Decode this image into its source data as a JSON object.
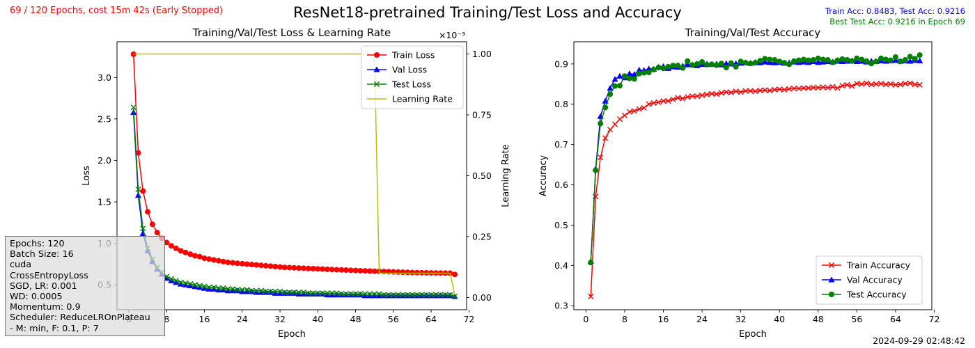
{
  "figure": {
    "suptitle": "ResNet18-pretrained Training/Test Loss and Accuracy",
    "status": "69 / 120 Epochs, cost 15m 42s (Early Stopped)",
    "acc_summary": "Train Acc: 0.8483, Test Acc: 0.9216",
    "best_acc": "Best Test Acc: 0.9216 in Epoch 69",
    "timestamp": "2024-09-29 02:48:42",
    "info_lines": [
      "Epochs: 120",
      "Batch Size: 16",
      "cuda",
      "CrossEntropyLoss",
      "SGD, LR: 0.001",
      "WD: 0.0005",
      "Momentum: 0.9",
      "Scheduler: ReduceLROnPlateau",
      "- M: min, F: 0.1, P: 7"
    ],
    "colors": {
      "train": "#ff0000",
      "val": "#0000ff",
      "test": "#008000",
      "lr": "#bfbf00",
      "status": "#ff0000"
    }
  },
  "chart_data": [
    {
      "type": "line",
      "title": "Training/Val/Test Loss & Learning Rate",
      "xlabel": "Epoch",
      "ylabel": "Loss",
      "y2label": "Learning Rate",
      "y2_offset_text": "×10⁻³",
      "xlim": [
        -2.5,
        71.5
      ],
      "ylim": [
        0.2,
        3.43
      ],
      "y2lim": [
        -0.05,
        1.05
      ],
      "xticks": [
        0,
        8,
        16,
        24,
        32,
        40,
        48,
        56,
        64,
        72
      ],
      "yticks": [
        0.5,
        1.0,
        1.5,
        2.0,
        2.5,
        3.0
      ],
      "y2ticks": [
        0.0,
        0.25,
        0.5,
        0.75,
        1.0
      ],
      "legend_position": "top-right",
      "x": [
        1,
        2,
        3,
        4,
        5,
        6,
        7,
        8,
        9,
        10,
        11,
        12,
        13,
        14,
        15,
        16,
        17,
        18,
        19,
        20,
        21,
        22,
        23,
        24,
        25,
        26,
        27,
        28,
        29,
        30,
        31,
        32,
        33,
        34,
        35,
        36,
        37,
        38,
        39,
        40,
        41,
        42,
        43,
        44,
        45,
        46,
        47,
        48,
        49,
        50,
        51,
        52,
        53,
        54,
        55,
        56,
        57,
        58,
        59,
        60,
        61,
        62,
        63,
        64,
        65,
        66,
        67,
        68,
        69
      ],
      "series": [
        {
          "name": "Train Loss",
          "marker": "circle",
          "color": "#ff0000",
          "values": [
            3.28,
            2.09,
            1.63,
            1.38,
            1.23,
            1.13,
            1.06,
            1.01,
            0.97,
            0.94,
            0.91,
            0.89,
            0.87,
            0.85,
            0.84,
            0.82,
            0.81,
            0.8,
            0.79,
            0.78,
            0.77,
            0.765,
            0.76,
            0.755,
            0.75,
            0.745,
            0.74,
            0.735,
            0.73,
            0.725,
            0.72,
            0.715,
            0.71,
            0.708,
            0.705,
            0.702,
            0.7,
            0.697,
            0.695,
            0.692,
            0.69,
            0.687,
            0.685,
            0.682,
            0.68,
            0.678,
            0.675,
            0.673,
            0.67,
            0.668,
            0.666,
            0.664,
            0.662,
            0.66,
            0.658,
            0.656,
            0.654,
            0.652,
            0.65,
            0.648,
            0.647,
            0.646,
            0.645,
            0.644,
            0.643,
            0.642,
            0.641,
            0.64,
            0.625
          ]
        },
        {
          "name": "Val Loss",
          "marker": "triangle",
          "color": "#0000ff",
          "values": [
            2.58,
            1.58,
            1.12,
            0.91,
            0.78,
            0.69,
            0.63,
            0.58,
            0.55,
            0.53,
            0.51,
            0.5,
            0.49,
            0.48,
            0.47,
            0.46,
            0.45,
            0.45,
            0.44,
            0.44,
            0.43,
            0.43,
            0.43,
            0.42,
            0.42,
            0.42,
            0.41,
            0.41,
            0.41,
            0.41,
            0.4,
            0.4,
            0.4,
            0.4,
            0.4,
            0.39,
            0.39,
            0.39,
            0.39,
            0.39,
            0.39,
            0.38,
            0.38,
            0.38,
            0.38,
            0.38,
            0.38,
            0.38,
            0.38,
            0.37,
            0.37,
            0.37,
            0.37,
            0.37,
            0.37,
            0.37,
            0.37,
            0.37,
            0.37,
            0.37,
            0.37,
            0.37,
            0.37,
            0.37,
            0.37,
            0.37,
            0.37,
            0.37,
            0.36
          ]
        },
        {
          "name": "Test Loss",
          "marker": "x",
          "color": "#008000",
          "values": [
            2.64,
            1.65,
            1.18,
            0.94,
            0.81,
            0.71,
            0.65,
            0.6,
            0.57,
            0.55,
            0.53,
            0.52,
            0.51,
            0.5,
            0.49,
            0.48,
            0.47,
            0.47,
            0.46,
            0.46,
            0.45,
            0.45,
            0.44,
            0.44,
            0.44,
            0.43,
            0.43,
            0.43,
            0.42,
            0.42,
            0.42,
            0.42,
            0.41,
            0.41,
            0.41,
            0.41,
            0.41,
            0.4,
            0.4,
            0.4,
            0.4,
            0.4,
            0.4,
            0.4,
            0.39,
            0.39,
            0.39,
            0.39,
            0.39,
            0.39,
            0.39,
            0.39,
            0.39,
            0.38,
            0.38,
            0.38,
            0.38,
            0.38,
            0.38,
            0.38,
            0.38,
            0.38,
            0.38,
            0.38,
            0.38,
            0.38,
            0.38,
            0.38,
            0.36
          ]
        },
        {
          "name": "Learning Rate",
          "marker": "none",
          "color": "#bfbf00",
          "axis": "right",
          "values": [
            1.0,
            1.0,
            1.0,
            1.0,
            1.0,
            1.0,
            1.0,
            1.0,
            1.0,
            1.0,
            1.0,
            1.0,
            1.0,
            1.0,
            1.0,
            1.0,
            1.0,
            1.0,
            1.0,
            1.0,
            1.0,
            1.0,
            1.0,
            1.0,
            1.0,
            1.0,
            1.0,
            1.0,
            1.0,
            1.0,
            1.0,
            1.0,
            1.0,
            1.0,
            1.0,
            1.0,
            1.0,
            1.0,
            1.0,
            1.0,
            1.0,
            1.0,
            1.0,
            1.0,
            1.0,
            1.0,
            1.0,
            1.0,
            1.0,
            1.0,
            1.0,
            1.0,
            0.1,
            0.1,
            0.1,
            0.1,
            0.1,
            0.1,
            0.1,
            0.1,
            0.1,
            0.1,
            0.1,
            0.1,
            0.1,
            0.1,
            0.1,
            0.1,
            0.01
          ]
        }
      ]
    },
    {
      "type": "line",
      "title": "Training/Val/Test Accuracy",
      "xlabel": "Epoch",
      "ylabel": "Accuracy",
      "xlim": [
        -2.5,
        71.5
      ],
      "ylim": [
        0.29,
        0.955
      ],
      "xticks": [
        0,
        8,
        16,
        24,
        32,
        40,
        48,
        56,
        64,
        72
      ],
      "yticks": [
        0.3,
        0.4,
        0.5,
        0.6,
        0.7,
        0.8,
        0.9
      ],
      "legend_position": "bottom-right",
      "x": [
        1,
        2,
        3,
        4,
        5,
        6,
        7,
        8,
        9,
        10,
        11,
        12,
        13,
        14,
        15,
        16,
        17,
        18,
        19,
        20,
        21,
        22,
        23,
        24,
        25,
        26,
        27,
        28,
        29,
        30,
        31,
        32,
        33,
        34,
        35,
        36,
        37,
        38,
        39,
        40,
        41,
        42,
        43,
        44,
        45,
        46,
        47,
        48,
        49,
        50,
        51,
        52,
        53,
        54,
        55,
        56,
        57,
        58,
        59,
        60,
        61,
        62,
        63,
        64,
        65,
        66,
        67,
        68,
        69
      ],
      "series": [
        {
          "name": "Train Accuracy",
          "marker": "x",
          "color": "#ff0000",
          "values": [
            0.323,
            0.571,
            0.668,
            0.716,
            0.737,
            0.75,
            0.763,
            0.772,
            0.781,
            0.783,
            0.788,
            0.791,
            0.8,
            0.803,
            0.805,
            0.808,
            0.808,
            0.812,
            0.816,
            0.814,
            0.818,
            0.82,
            0.82,
            0.822,
            0.824,
            0.826,
            0.825,
            0.828,
            0.83,
            0.829,
            0.832,
            0.83,
            0.833,
            0.833,
            0.832,
            0.834,
            0.835,
            0.834,
            0.836,
            0.837,
            0.836,
            0.838,
            0.839,
            0.839,
            0.84,
            0.84,
            0.841,
            0.841,
            0.842,
            0.841,
            0.843,
            0.84,
            0.846,
            0.848,
            0.845,
            0.851,
            0.85,
            0.852,
            0.849,
            0.85,
            0.851,
            0.849,
            0.85,
            0.848,
            0.849,
            0.851,
            0.852,
            0.849,
            0.848
          ]
        },
        {
          "name": "Val Accuracy",
          "marker": "triangle",
          "color": "#0000ff",
          "values": [
            0.41,
            0.64,
            0.77,
            0.808,
            0.84,
            0.862,
            0.87,
            0.866,
            0.876,
            0.874,
            0.885,
            0.884,
            0.888,
            0.887,
            0.892,
            0.894,
            0.889,
            0.893,
            0.892,
            0.895,
            0.898,
            0.898,
            0.896,
            0.899,
            0.9,
            0.899,
            0.9,
            0.898,
            0.901,
            0.9,
            0.901,
            0.902,
            0.903,
            0.902,
            0.904,
            0.903,
            0.905,
            0.904,
            0.903,
            0.904,
            0.902,
            0.903,
            0.905,
            0.904,
            0.905,
            0.904,
            0.906,
            0.904,
            0.905,
            0.906,
            0.905,
            0.907,
            0.906,
            0.907,
            0.908,
            0.906,
            0.907,
            0.905,
            0.907,
            0.906,
            0.908,
            0.907,
            0.908,
            0.909,
            0.907,
            0.908,
            0.907,
            0.909,
            0.908
          ]
        },
        {
          "name": "Test Accuracy",
          "marker": "circle",
          "color": "#008000",
          "values": [
            0.407,
            0.636,
            0.752,
            0.792,
            0.825,
            0.845,
            0.846,
            0.87,
            0.864,
            0.863,
            0.876,
            0.878,
            0.879,
            0.886,
            0.891,
            0.889,
            0.893,
            0.896,
            0.896,
            0.89,
            0.907,
            0.897,
            0.9,
            0.905,
            0.898,
            0.899,
            0.897,
            0.901,
            0.891,
            0.902,
            0.893,
            0.906,
            0.903,
            0.901,
            0.903,
            0.908,
            0.913,
            0.911,
            0.91,
            0.906,
            0.903,
            0.899,
            0.907,
            0.909,
            0.911,
            0.909,
            0.91,
            0.914,
            0.911,
            0.91,
            0.904,
            0.909,
            0.912,
            0.91,
            0.907,
            0.914,
            0.911,
            0.907,
            0.901,
            0.906,
            0.914,
            0.911,
            0.909,
            0.917,
            0.906,
            0.91,
            0.918,
            0.913,
            0.922
          ]
        }
      ]
    }
  ]
}
